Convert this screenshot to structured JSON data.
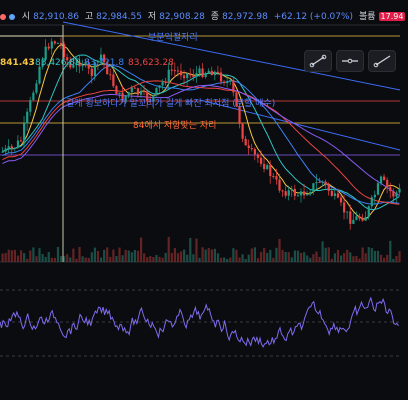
{
  "ohlc": {
    "open_label": "시",
    "open_value": "82,910.86",
    "high_label": "고",
    "high_value": "82,984.55",
    "low_label": "저",
    "low_value": "82,908.28",
    "close_label": "종",
    "close_value": "82,972.98",
    "change": "+62.12 (+0.07%)",
    "volume_label": "볼륨",
    "volume_value": "17.94"
  },
  "price_labels": {
    "left_price": "841.43",
    "ma1": "83,426.89",
    "ma2": "83,721.8",
    "ma3": "83,623.28"
  },
  "annotations": [
    {
      "text": "부분익절자리",
      "color": "#4f7cff"
    },
    {
      "text": "길게 횡보하다가 말꼬리가 길게 빠진 최저점 (분할 매수)",
      "color": "#4f7cff"
    },
    {
      "text": "84에서 저항맞는 자리",
      "color": "#ff6a3a"
    }
  ],
  "colors": {
    "up": "#1f9d8a",
    "down": "#ef4444",
    "ma_short": "#f5c542",
    "ma_mid": "#2ec4c4",
    "ma_long": "#3b82f6",
    "ma_red": "#ef4444",
    "ma_violet": "#8b5cf6",
    "rsi": "#7c6cf0"
  },
  "toolbar_icons": [
    "trendline-icon",
    "horizontal-line-icon",
    "ray-icon"
  ]
}
